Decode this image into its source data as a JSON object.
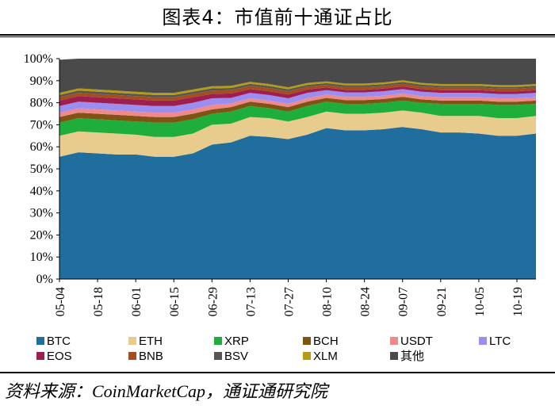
{
  "header": {
    "title": "图表4：市值前十通证占比"
  },
  "footer": {
    "source": "资料来源：CoinMarketCap，通证通研究院"
  },
  "chart_data": {
    "type": "area",
    "stacked": true,
    "title": "图表4：市值前十通证占比",
    "x_ticks": [
      "05-04",
      "05-18",
      "06-01",
      "06-15",
      "06-29",
      "07-13",
      "07-27",
      "08-10",
      "08-24",
      "09-07",
      "09-21",
      "10-05",
      "10-19"
    ],
    "y_ticks": [
      "0%",
      "10%",
      "20%",
      "30%",
      "40%",
      "50%",
      "60%",
      "70%",
      "80%",
      "90%",
      "100%"
    ],
    "ylim": [
      0,
      100
    ],
    "legend_position": "bottom",
    "x": [
      "05-04",
      "05-11",
      "05-18",
      "05-25",
      "06-01",
      "06-08",
      "06-15",
      "06-22",
      "06-29",
      "07-06",
      "07-13",
      "07-20",
      "07-27",
      "08-03",
      "08-10",
      "08-17",
      "08-24",
      "08-31",
      "09-07",
      "09-14",
      "09-21",
      "09-28",
      "10-05",
      "10-12",
      "10-19",
      "10-26"
    ],
    "series": [
      {
        "name": "BTC",
        "color": "#1F6E9E",
        "values": [
          55.5,
          57.5,
          57,
          56.5,
          56.5,
          55.5,
          55.5,
          57,
          61,
          62,
          65,
          64.5,
          63.5,
          65.5,
          68.5,
          67.5,
          67.5,
          68,
          69,
          68,
          66.5,
          66.5,
          66,
          65,
          65,
          66
        ]
      },
      {
        "name": "ETH",
        "color": "#E8CC8E",
        "values": [
          9.5,
          9.5,
          9.5,
          9.5,
          9,
          9,
          9,
          9,
          9,
          8.5,
          8.5,
          8.5,
          8,
          8,
          7.5,
          7.5,
          7.5,
          7.5,
          7.5,
          7.5,
          7.5,
          7.5,
          8,
          8,
          8,
          8
        ]
      },
      {
        "name": "XRP",
        "color": "#1FAD3C",
        "values": [
          6,
          6,
          6,
          6,
          6,
          6.5,
          6.5,
          6.5,
          5,
          5.5,
          5,
          4.5,
          4.5,
          5,
          4.5,
          4.5,
          4.5,
          4.5,
          4.5,
          4.5,
          5.5,
          5.5,
          5.5,
          6,
          6,
          5.5
        ]
      },
      {
        "name": "BCH",
        "color": "#7F5413",
        "values": [
          2.5,
          2.5,
          2.5,
          2.5,
          2.5,
          2.5,
          2.5,
          2.5,
          2,
          2,
          2,
          2,
          2,
          2,
          1.7,
          1.7,
          1.7,
          1.7,
          1.7,
          1.5,
          1.5,
          1.5,
          1.5,
          1.5,
          1.5,
          1.5
        ]
      },
      {
        "name": "USDT",
        "color": "#F08A8A",
        "values": [
          2,
          2,
          2,
          2,
          2,
          2,
          2,
          2,
          2,
          1.7,
          1.5,
          1.5,
          1.5,
          1.5,
          1.5,
          1.5,
          1.5,
          1.5,
          1.5,
          1.5,
          1.5,
          1.5,
          1.5,
          1.5,
          1.5,
          1.5
        ]
      },
      {
        "name": "LTC",
        "color": "#9C8EF0",
        "values": [
          3,
          3,
          3,
          3,
          3,
          3,
          3,
          3,
          3,
          2.5,
          2.5,
          2.5,
          2.5,
          2.5,
          2,
          2,
          2,
          2,
          2,
          2,
          2,
          2,
          2,
          2,
          2,
          2
        ]
      },
      {
        "name": "EOS",
        "color": "#9E1E4F",
        "values": [
          2.5,
          2.5,
          2.5,
          2.5,
          2.5,
          2.5,
          2.5,
          2.5,
          2,
          2,
          1.7,
          1.7,
          1.7,
          1.5,
          1.2,
          1.2,
          1.2,
          1.2,
          1.2,
          1.2,
          1.2,
          1.2,
          1.2,
          1.2,
          1.2,
          1.2
        ]
      },
      {
        "name": "BNB",
        "color": "#A34E1E",
        "values": [
          1.5,
          1.5,
          1.5,
          1.5,
          1.5,
          1.5,
          1.5,
          1.5,
          1.5,
          1.5,
          1.5,
          1.5,
          1.5,
          1.3,
          1.2,
          1.2,
          1.2,
          1.2,
          1.2,
          1.2,
          1.2,
          1.2,
          1.2,
          1.2,
          1.2,
          1.2
        ]
      },
      {
        "name": "BSV",
        "color": "#555555",
        "values": [
          1,
          1,
          1,
          1,
          1,
          1,
          1,
          1,
          1,
          1,
          0.9,
          0.9,
          0.9,
          0.8,
          0.8,
          0.8,
          0.8,
          0.8,
          0.8,
          0.8,
          0.8,
          0.8,
          0.8,
          0.8,
          0.8,
          0.8
        ]
      },
      {
        "name": "XLM",
        "color": "#B59A14",
        "values": [
          1,
          1,
          1,
          1,
          1,
          1,
          1,
          1,
          1,
          1,
          0.9,
          0.9,
          0.9,
          0.9,
          0.8,
          0.8,
          0.8,
          0.8,
          0.8,
          0.8,
          0.8,
          0.8,
          0.8,
          0.8,
          0.8,
          0.8
        ]
      },
      {
        "name": "其他",
        "color": "#4A4A4A",
        "values": [
          15,
          13.5,
          14,
          14.5,
          15,
          15.5,
          15.5,
          14,
          13.5,
          13.5,
          10.5,
          11.5,
          13,
          11,
          10.3,
          11.3,
          11.3,
          10.8,
          9.8,
          11,
          11.5,
          11.5,
          11.5,
          12,
          12,
          11.5
        ]
      }
    ]
  }
}
